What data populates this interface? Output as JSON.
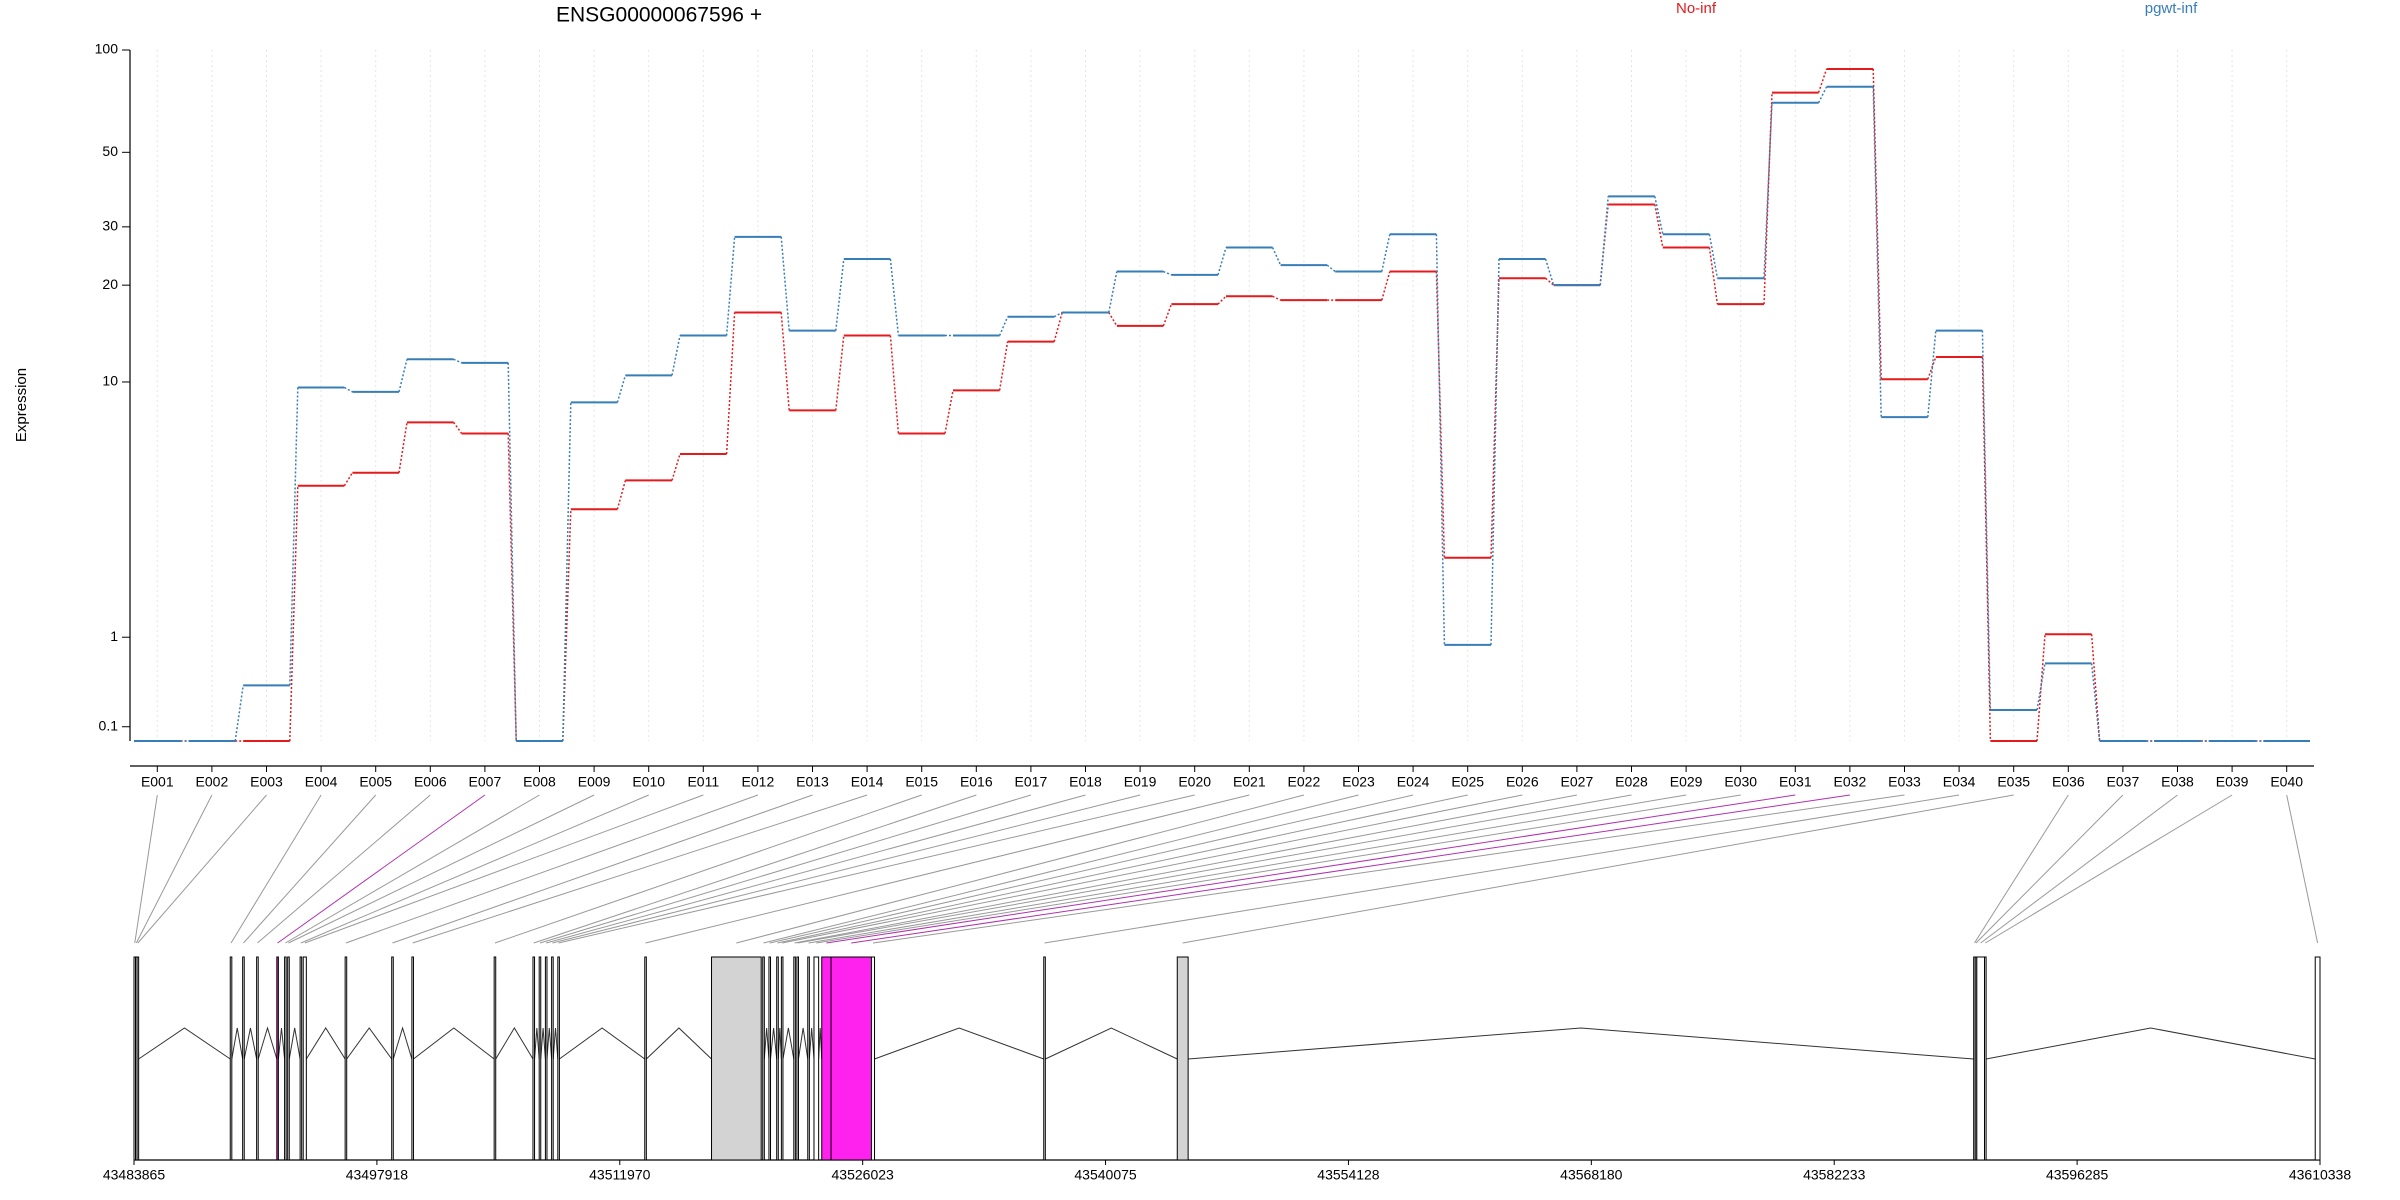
{
  "chart_data": {
    "type": "line",
    "title": "ENSG00000067596 +",
    "y_label": "Expression",
    "categories": [
      "E001",
      "E002",
      "E003",
      "E004",
      "E005",
      "E006",
      "E007",
      "E008",
      "E009",
      "E010",
      "E011",
      "E012",
      "E013",
      "E014",
      "E015",
      "E016",
      "E017",
      "E018",
      "E019",
      "E020",
      "E021",
      "E022",
      "E023",
      "E024",
      "E025",
      "E026",
      "E027",
      "E028",
      "E029",
      "E030",
      "E031",
      "E032",
      "E033",
      "E034",
      "E035",
      "E036",
      "E037",
      "E038",
      "E039",
      "E040"
    ],
    "series": [
      {
        "name": "No-inf",
        "color": "#e41a1c",
        "values": [
          0,
          0,
          0,
          4.5,
          5.0,
          7.4,
          6.8,
          0,
          3.7,
          4.7,
          5.8,
          16.5,
          8.1,
          14,
          6.8,
          9.4,
          13.4,
          16.5,
          15,
          17.5,
          18.5,
          18,
          18,
          22,
          2.4,
          21,
          20,
          35,
          26,
          17.5,
          75,
          88,
          10.2,
          12,
          0,
          1.04,
          0,
          0,
          0,
          0
        ]
      },
      {
        "name": "pgwt-inf",
        "color": "#377eb8",
        "values": [
          0,
          0,
          0.45,
          9.6,
          9.3,
          11.8,
          11.5,
          0,
          8.6,
          10.5,
          14,
          28,
          14.5,
          24,
          14,
          14,
          16,
          16.5,
          22,
          21.5,
          26,
          23,
          22,
          28.5,
          0.9,
          24,
          20,
          37,
          28.5,
          21,
          70,
          78,
          7.7,
          14.5,
          0.23,
          0.68,
          0,
          0,
          0,
          0
        ]
      }
    ],
    "ylim": [
      0,
      100
    ],
    "yticks": [
      0.1,
      1,
      10,
      20,
      30,
      50,
      100
    ],
    "yscale": "log1p",
    "grid": "x"
  },
  "gene_model": {
    "xlim": [
      43483865,
      43610338
    ],
    "xticks": [
      43483865,
      43497918,
      43511970,
      43526023,
      43540075,
      43554128,
      43568180,
      43582233,
      43596285,
      43610338
    ],
    "exons": [
      {
        "start": 43483865,
        "end": 43483955,
        "fill": "#ffffff"
      },
      {
        "start": 43483955,
        "end": 43484045,
        "fill": "#ffffff"
      },
      {
        "start": 43484045,
        "end": 43484134,
        "fill": "#ffffff"
      },
      {
        "start": 43489434,
        "end": 43489524,
        "fill": "#ffffff"
      },
      {
        "start": 43490152,
        "end": 43490242,
        "fill": "#ffffff"
      },
      {
        "start": 43490961,
        "end": 43491051,
        "fill": "#ffffff"
      },
      {
        "start": 43492128,
        "end": 43492218,
        "fill": "#ff22ee"
      },
      {
        "start": 43492578,
        "end": 43492668,
        "fill": "#ffffff"
      },
      {
        "start": 43492757,
        "end": 43492847,
        "fill": "#ffffff"
      },
      {
        "start": 43493476,
        "end": 43493566,
        "fill": "#ffffff"
      },
      {
        "start": 43493655,
        "end": 43493835,
        "fill": "#ffffff"
      },
      {
        "start": 43496081,
        "end": 43496171,
        "fill": "#ffffff"
      },
      {
        "start": 43498775,
        "end": 43498865,
        "fill": "#ffffff"
      },
      {
        "start": 43499943,
        "end": 43500033,
        "fill": "#ffffff"
      },
      {
        "start": 43504703,
        "end": 43504793,
        "fill": "#ffffff"
      },
      {
        "start": 43506949,
        "end": 43507039,
        "fill": "#ffffff"
      },
      {
        "start": 43507308,
        "end": 43507398,
        "fill": "#ffffff"
      },
      {
        "start": 43507667,
        "end": 43507757,
        "fill": "#ffffff"
      },
      {
        "start": 43508027,
        "end": 43508117,
        "fill": "#ffffff"
      },
      {
        "start": 43508386,
        "end": 43508476,
        "fill": "#ffffff"
      },
      {
        "start": 43513416,
        "end": 43513506,
        "fill": "#ffffff"
      },
      {
        "start": 43517278,
        "end": 43520152,
        "fill": "#d3d3d3"
      },
      {
        "start": 43520242,
        "end": 43520332,
        "fill": "#ffffff"
      },
      {
        "start": 43520601,
        "end": 43520691,
        "fill": "#ffffff"
      },
      {
        "start": 43521050,
        "end": 43521140,
        "fill": "#ffffff"
      },
      {
        "start": 43521320,
        "end": 43521410,
        "fill": "#ffffff"
      },
      {
        "start": 43522039,
        "end": 43522129,
        "fill": "#ffffff"
      },
      {
        "start": 43522218,
        "end": 43522308,
        "fill": "#ffffff"
      },
      {
        "start": 43522847,
        "end": 43522937,
        "fill": "#ffffff"
      },
      {
        "start": 43523206,
        "end": 43523476,
        "fill": "#ffffff"
      },
      {
        "start": 43523655,
        "end": 43524194,
        "fill": "#ff22ee"
      },
      {
        "start": 43524194,
        "end": 43526530,
        "fill": "#ff22ee"
      },
      {
        "start": 43526530,
        "end": 43526709,
        "fill": "#ffffff"
      },
      {
        "start": 43536500,
        "end": 43536590,
        "fill": "#ffffff"
      },
      {
        "start": 43544224,
        "end": 43544853,
        "fill": "#d3d3d3"
      },
      {
        "start": 43590302,
        "end": 43590392,
        "fill": "#ffffff"
      },
      {
        "start": 43590392,
        "end": 43590482,
        "fill": "#ffffff"
      },
      {
        "start": 43590482,
        "end": 43590930,
        "fill": "#ffffff"
      },
      {
        "start": 43590930,
        "end": 43591020,
        "fill": "#ffffff"
      },
      {
        "start": 43610062,
        "end": 43610338,
        "fill": "#ffffff"
      }
    ]
  }
}
